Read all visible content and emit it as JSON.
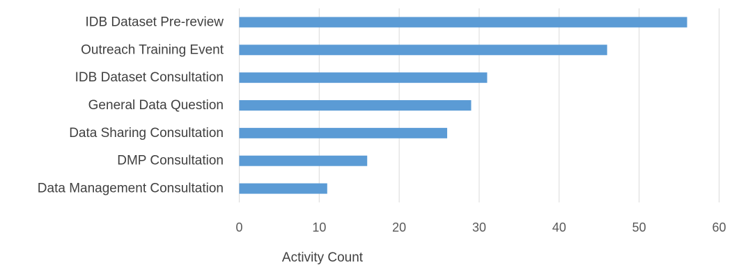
{
  "chart_data": {
    "type": "bar",
    "orientation": "horizontal",
    "title": "",
    "xlabel": "Activity Count",
    "ylabel": "",
    "categories": [
      "IDB Dataset Pre-review",
      "Outreach Training Event",
      "IDB Dataset Consultation",
      "General Data Question",
      "Data Sharing Consultation",
      "DMP Consultation",
      "Data Management Consultation"
    ],
    "values": [
      56,
      46,
      31,
      29,
      26,
      16,
      11
    ],
    "xlim": [
      0,
      60
    ],
    "xticks": [
      0,
      10,
      20,
      30,
      40,
      50,
      60
    ],
    "grid": true,
    "legend": "none",
    "colors": {
      "bar": "#5b9bd5",
      "grid": "#d9d9d9",
      "label": "#404040",
      "tick": "#595959"
    }
  }
}
